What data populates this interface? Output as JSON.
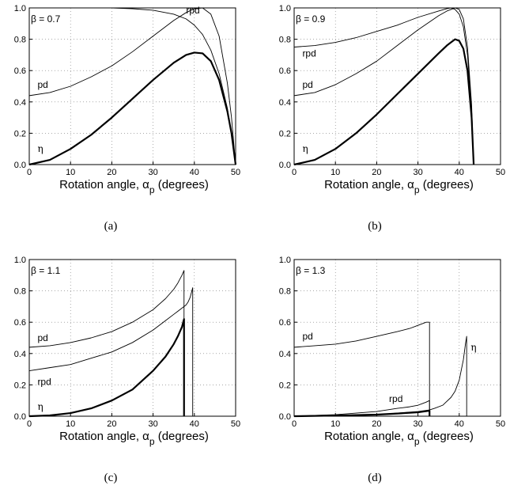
{
  "chart_data": [
    {
      "type": "line",
      "caption": "(a)",
      "annotation": "β = 0.7",
      "xlabel": "Rotation angle, α",
      "xlabel_subscript": "p",
      "xlabel_suffix": " (degrees)",
      "xlim": [
        0,
        50
      ],
      "ylim": [
        0,
        1
      ],
      "xticks": [
        0,
        10,
        20,
        30,
        40,
        50
      ],
      "yticks": [
        0.0,
        0.2,
        0.4,
        0.6,
        0.8,
        1.0
      ],
      "grid": true,
      "series": [
        {
          "name": "rpd",
          "width": 0.9,
          "label_at": [
            38,
            0.965
          ],
          "x": [
            0,
            10,
            20,
            25,
            30,
            35,
            38,
            40,
            42,
            44,
            46,
            48,
            49,
            50
          ],
          "y": [
            1.0,
            1.0,
            1.0,
            0.995,
            0.985,
            0.96,
            0.93,
            0.89,
            0.83,
            0.73,
            0.58,
            0.36,
            0.2,
            0.0
          ]
        },
        {
          "name": "pd",
          "width": 0.9,
          "label_at": [
            2,
            0.49
          ],
          "x": [
            0,
            5,
            10,
            15,
            20,
            25,
            30,
            35,
            38,
            40,
            42,
            44,
            46,
            48,
            49,
            50
          ],
          "y": [
            0.44,
            0.46,
            0.5,
            0.56,
            0.63,
            0.72,
            0.82,
            0.92,
            0.97,
            0.995,
            1.0,
            0.96,
            0.82,
            0.52,
            0.3,
            0.0
          ]
        },
        {
          "name": "η",
          "width": 2.2,
          "label_at": [
            2,
            0.08
          ],
          "x": [
            0,
            5,
            10,
            15,
            20,
            25,
            30,
            35,
            38,
            40,
            42,
            44,
            46,
            48,
            49,
            50
          ],
          "y": [
            0.0,
            0.03,
            0.1,
            0.19,
            0.3,
            0.42,
            0.54,
            0.65,
            0.7,
            0.715,
            0.71,
            0.66,
            0.54,
            0.34,
            0.2,
            0.0
          ]
        }
      ]
    },
    {
      "type": "line",
      "caption": "(b)",
      "annotation": "β = 0.9",
      "xlabel": "Rotation angle, α",
      "xlabel_subscript": "p",
      "xlabel_suffix": " (degrees)",
      "xlim": [
        0,
        50
      ],
      "ylim": [
        0,
        1
      ],
      "xticks": [
        0,
        10,
        20,
        30,
        40,
        50
      ],
      "yticks": [
        0.0,
        0.2,
        0.4,
        0.6,
        0.8,
        1.0
      ],
      "grid": true,
      "series": [
        {
          "name": "rpd",
          "width": 0.9,
          "label_at": [
            2,
            0.69
          ],
          "x": [
            0,
            5,
            10,
            15,
            20,
            25,
            30,
            35,
            37,
            38,
            39,
            40,
            41,
            42,
            43,
            43.5
          ],
          "y": [
            0.75,
            0.76,
            0.78,
            0.81,
            0.85,
            0.89,
            0.94,
            0.98,
            0.995,
            1.0,
            0.99,
            0.96,
            0.88,
            0.7,
            0.35,
            0.0
          ]
        },
        {
          "name": "pd",
          "width": 0.9,
          "label_at": [
            2,
            0.49
          ],
          "x": [
            0,
            5,
            10,
            15,
            20,
            25,
            30,
            35,
            37,
            38,
            39,
            40,
            41,
            42,
            43,
            43.5
          ],
          "y": [
            0.44,
            0.46,
            0.51,
            0.58,
            0.66,
            0.76,
            0.86,
            0.95,
            0.98,
            0.99,
            1.0,
            0.99,
            0.93,
            0.75,
            0.38,
            0.0
          ]
        },
        {
          "name": "η",
          "width": 2.2,
          "label_at": [
            2,
            0.08
          ],
          "x": [
            0,
            5,
            10,
            15,
            20,
            25,
            30,
            35,
            37,
            38,
            39,
            40,
            41,
            42,
            43,
            43.5
          ],
          "y": [
            0.0,
            0.03,
            0.1,
            0.2,
            0.32,
            0.45,
            0.58,
            0.71,
            0.76,
            0.78,
            0.8,
            0.79,
            0.74,
            0.6,
            0.3,
            0.0
          ]
        }
      ]
    },
    {
      "type": "line",
      "caption": "(c)",
      "annotation": "β = 1.1",
      "xlabel": "Rotation angle, α",
      "xlabel_subscript": "p",
      "xlabel_suffix": " (degrees)",
      "xlim": [
        0,
        50
      ],
      "ylim": [
        0,
        1
      ],
      "xticks": [
        0,
        10,
        20,
        30,
        40,
        50
      ],
      "yticks": [
        0.0,
        0.2,
        0.4,
        0.6,
        0.8,
        1.0
      ],
      "grid": true,
      "series": [
        {
          "name": "pd",
          "width": 0.9,
          "label_at": [
            2,
            0.48
          ],
          "x": [
            0,
            5,
            10,
            15,
            20,
            25,
            30,
            33,
            35,
            36,
            37,
            37.5,
            37.5
          ],
          "y": [
            0.44,
            0.45,
            0.47,
            0.5,
            0.54,
            0.6,
            0.68,
            0.75,
            0.81,
            0.85,
            0.9,
            0.93,
            0.0
          ]
        },
        {
          "name": "rpd",
          "width": 0.9,
          "label_at": [
            2,
            0.2
          ],
          "x": [
            0,
            5,
            10,
            15,
            20,
            25,
            30,
            33,
            35,
            36,
            37,
            37.5,
            38,
            38.5,
            39,
            39.5,
            39.6,
            39.6
          ],
          "y": [
            0.29,
            0.31,
            0.33,
            0.37,
            0.41,
            0.47,
            0.55,
            0.61,
            0.65,
            0.67,
            0.69,
            0.7,
            0.71,
            0.73,
            0.76,
            0.81,
            0.82,
            0.0
          ]
        },
        {
          "name": "η",
          "width": 2.2,
          "label_at": [
            2,
            0.04
          ],
          "x": [
            0,
            5,
            10,
            15,
            20,
            25,
            30,
            33,
            35,
            36,
            37,
            37.5,
            37.5
          ],
          "y": [
            0.0,
            0.005,
            0.02,
            0.05,
            0.1,
            0.17,
            0.29,
            0.38,
            0.46,
            0.51,
            0.57,
            0.62,
            0.0
          ]
        }
      ]
    },
    {
      "type": "line",
      "caption": "(d)",
      "annotation": "β = 1.3",
      "xlabel": "Rotation angle, α",
      "xlabel_subscript": "p",
      "xlabel_suffix": " (degrees)",
      "xlim": [
        0,
        50
      ],
      "ylim": [
        0,
        1
      ],
      "xticks": [
        0,
        10,
        20,
        30,
        40,
        50
      ],
      "yticks": [
        0.0,
        0.2,
        0.4,
        0.6,
        0.8,
        1.0
      ],
      "grid": true,
      "series": [
        {
          "name": "pd",
          "width": 0.9,
          "label_at": [
            2,
            0.49
          ],
          "x": [
            0,
            5,
            10,
            15,
            20,
            25,
            28,
            30,
            31,
            32,
            32.8,
            32.8
          ],
          "y": [
            0.44,
            0.45,
            0.46,
            0.48,
            0.51,
            0.54,
            0.56,
            0.58,
            0.59,
            0.6,
            0.6,
            0.0
          ]
        },
        {
          "name": "rpd",
          "width": 0.9,
          "label_at": [
            23,
            0.09
          ],
          "x": [
            0,
            5,
            10,
            15,
            20,
            25,
            28,
            30,
            31,
            32,
            32.8,
            32.8
          ],
          "y": [
            0.0,
            0.005,
            0.01,
            0.02,
            0.03,
            0.05,
            0.06,
            0.07,
            0.08,
            0.09,
            0.1,
            0.0
          ]
        },
        {
          "name": "η",
          "width": 0.9,
          "label_at": [
            42.8,
            0.42
          ],
          "x": [
            0,
            10,
            20,
            25,
            30,
            32.8,
            34,
            36,
            38,
            39,
            40,
            41,
            41.5,
            41.8,
            41.8
          ],
          "y": [
            0.0,
            0.005,
            0.01,
            0.02,
            0.03,
            0.04,
            0.05,
            0.07,
            0.12,
            0.16,
            0.23,
            0.36,
            0.46,
            0.51,
            0.0
          ]
        },
        {
          "name": "η",
          "width": 2.2,
          "label_at": null,
          "x": [
            0,
            10,
            20,
            25,
            30,
            32.8,
            32.8
          ],
          "y": [
            0.0,
            0.004,
            0.01,
            0.017,
            0.025,
            0.035,
            0.0
          ]
        }
      ]
    }
  ]
}
